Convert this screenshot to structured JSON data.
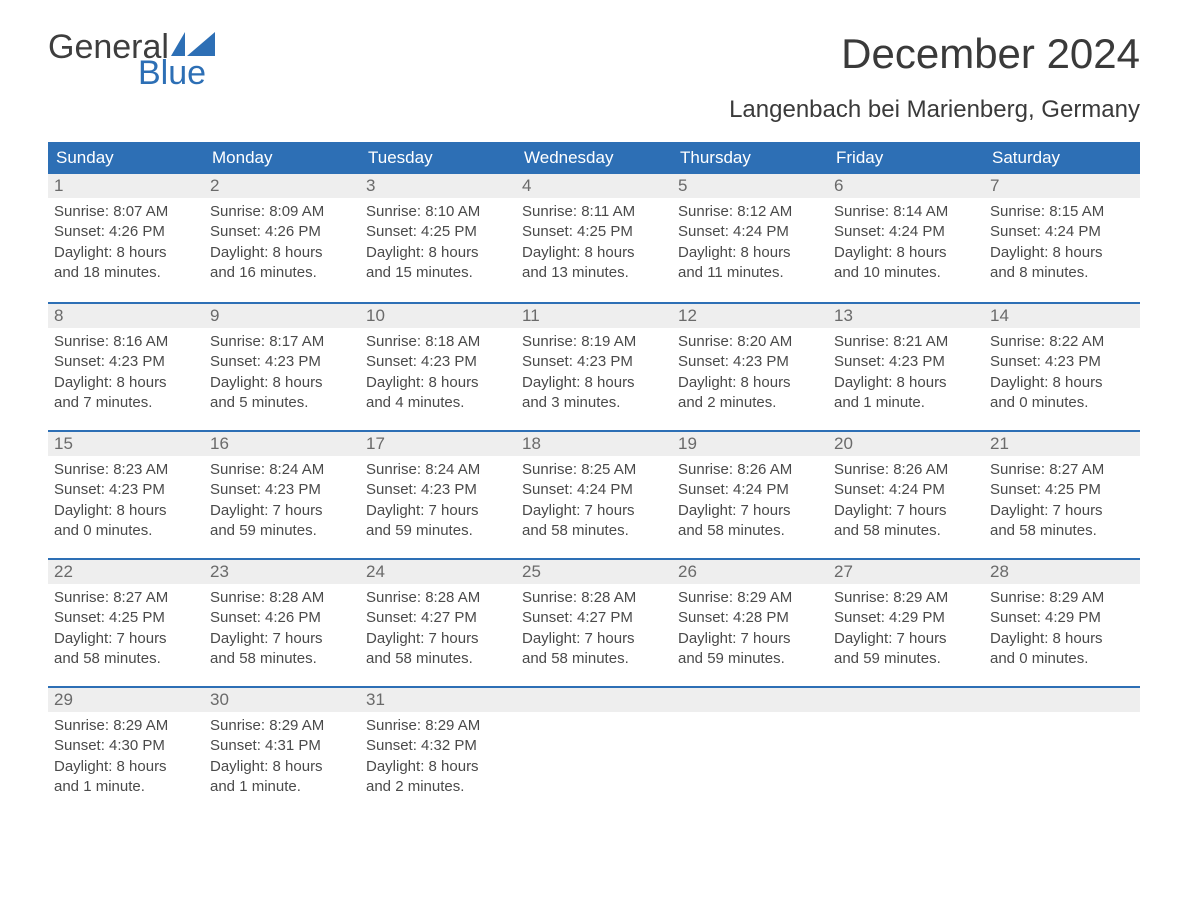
{
  "logo": {
    "part1": "General",
    "part2": "Blue",
    "icon_color": "#2d6fb5"
  },
  "title": "December 2024",
  "location": "Langenbach bei Marienberg, Germany",
  "colors": {
    "header_bg": "#2d6fb5",
    "header_text": "#ffffff",
    "daynum_bg": "#eeeeee",
    "daynum_text": "#6a6a6a",
    "body_text": "#4a4a4a",
    "week_border": "#2d6fb5",
    "page_bg": "#ffffff"
  },
  "typography": {
    "title_fontsize": 42,
    "location_fontsize": 24,
    "header_fontsize": 17,
    "daynum_fontsize": 17,
    "cell_fontsize": 15
  },
  "day_headers": [
    "Sunday",
    "Monday",
    "Tuesday",
    "Wednesday",
    "Thursday",
    "Friday",
    "Saturday"
  ],
  "weeks": [
    [
      {
        "n": "1",
        "sunrise": "Sunrise: 8:07 AM",
        "sunset": "Sunset: 4:26 PM",
        "d1": "Daylight: 8 hours",
        "d2": "and 18 minutes."
      },
      {
        "n": "2",
        "sunrise": "Sunrise: 8:09 AM",
        "sunset": "Sunset: 4:26 PM",
        "d1": "Daylight: 8 hours",
        "d2": "and 16 minutes."
      },
      {
        "n": "3",
        "sunrise": "Sunrise: 8:10 AM",
        "sunset": "Sunset: 4:25 PM",
        "d1": "Daylight: 8 hours",
        "d2": "and 15 minutes."
      },
      {
        "n": "4",
        "sunrise": "Sunrise: 8:11 AM",
        "sunset": "Sunset: 4:25 PM",
        "d1": "Daylight: 8 hours",
        "d2": "and 13 minutes."
      },
      {
        "n": "5",
        "sunrise": "Sunrise: 8:12 AM",
        "sunset": "Sunset: 4:24 PM",
        "d1": "Daylight: 8 hours",
        "d2": "and 11 minutes."
      },
      {
        "n": "6",
        "sunrise": "Sunrise: 8:14 AM",
        "sunset": "Sunset: 4:24 PM",
        "d1": "Daylight: 8 hours",
        "d2": "and 10 minutes."
      },
      {
        "n": "7",
        "sunrise": "Sunrise: 8:15 AM",
        "sunset": "Sunset: 4:24 PM",
        "d1": "Daylight: 8 hours",
        "d2": "and 8 minutes."
      }
    ],
    [
      {
        "n": "8",
        "sunrise": "Sunrise: 8:16 AM",
        "sunset": "Sunset: 4:23 PM",
        "d1": "Daylight: 8 hours",
        "d2": "and 7 minutes."
      },
      {
        "n": "9",
        "sunrise": "Sunrise: 8:17 AM",
        "sunset": "Sunset: 4:23 PM",
        "d1": "Daylight: 8 hours",
        "d2": "and 5 minutes."
      },
      {
        "n": "10",
        "sunrise": "Sunrise: 8:18 AM",
        "sunset": "Sunset: 4:23 PM",
        "d1": "Daylight: 8 hours",
        "d2": "and 4 minutes."
      },
      {
        "n": "11",
        "sunrise": "Sunrise: 8:19 AM",
        "sunset": "Sunset: 4:23 PM",
        "d1": "Daylight: 8 hours",
        "d2": "and 3 minutes."
      },
      {
        "n": "12",
        "sunrise": "Sunrise: 8:20 AM",
        "sunset": "Sunset: 4:23 PM",
        "d1": "Daylight: 8 hours",
        "d2": "and 2 minutes."
      },
      {
        "n": "13",
        "sunrise": "Sunrise: 8:21 AM",
        "sunset": "Sunset: 4:23 PM",
        "d1": "Daylight: 8 hours",
        "d2": "and 1 minute."
      },
      {
        "n": "14",
        "sunrise": "Sunrise: 8:22 AM",
        "sunset": "Sunset: 4:23 PM",
        "d1": "Daylight: 8 hours",
        "d2": "and 0 minutes."
      }
    ],
    [
      {
        "n": "15",
        "sunrise": "Sunrise: 8:23 AM",
        "sunset": "Sunset: 4:23 PM",
        "d1": "Daylight: 8 hours",
        "d2": "and 0 minutes."
      },
      {
        "n": "16",
        "sunrise": "Sunrise: 8:24 AM",
        "sunset": "Sunset: 4:23 PM",
        "d1": "Daylight: 7 hours",
        "d2": "and 59 minutes."
      },
      {
        "n": "17",
        "sunrise": "Sunrise: 8:24 AM",
        "sunset": "Sunset: 4:23 PM",
        "d1": "Daylight: 7 hours",
        "d2": "and 59 minutes."
      },
      {
        "n": "18",
        "sunrise": "Sunrise: 8:25 AM",
        "sunset": "Sunset: 4:24 PM",
        "d1": "Daylight: 7 hours",
        "d2": "and 58 minutes."
      },
      {
        "n": "19",
        "sunrise": "Sunrise: 8:26 AM",
        "sunset": "Sunset: 4:24 PM",
        "d1": "Daylight: 7 hours",
        "d2": "and 58 minutes."
      },
      {
        "n": "20",
        "sunrise": "Sunrise: 8:26 AM",
        "sunset": "Sunset: 4:24 PM",
        "d1": "Daylight: 7 hours",
        "d2": "and 58 minutes."
      },
      {
        "n": "21",
        "sunrise": "Sunrise: 8:27 AM",
        "sunset": "Sunset: 4:25 PM",
        "d1": "Daylight: 7 hours",
        "d2": "and 58 minutes."
      }
    ],
    [
      {
        "n": "22",
        "sunrise": "Sunrise: 8:27 AM",
        "sunset": "Sunset: 4:25 PM",
        "d1": "Daylight: 7 hours",
        "d2": "and 58 minutes."
      },
      {
        "n": "23",
        "sunrise": "Sunrise: 8:28 AM",
        "sunset": "Sunset: 4:26 PM",
        "d1": "Daylight: 7 hours",
        "d2": "and 58 minutes."
      },
      {
        "n": "24",
        "sunrise": "Sunrise: 8:28 AM",
        "sunset": "Sunset: 4:27 PM",
        "d1": "Daylight: 7 hours",
        "d2": "and 58 minutes."
      },
      {
        "n": "25",
        "sunrise": "Sunrise: 8:28 AM",
        "sunset": "Sunset: 4:27 PM",
        "d1": "Daylight: 7 hours",
        "d2": "and 58 minutes."
      },
      {
        "n": "26",
        "sunrise": "Sunrise: 8:29 AM",
        "sunset": "Sunset: 4:28 PM",
        "d1": "Daylight: 7 hours",
        "d2": "and 59 minutes."
      },
      {
        "n": "27",
        "sunrise": "Sunrise: 8:29 AM",
        "sunset": "Sunset: 4:29 PM",
        "d1": "Daylight: 7 hours",
        "d2": "and 59 minutes."
      },
      {
        "n": "28",
        "sunrise": "Sunrise: 8:29 AM",
        "sunset": "Sunset: 4:29 PM",
        "d1": "Daylight: 8 hours",
        "d2": "and 0 minutes."
      }
    ],
    [
      {
        "n": "29",
        "sunrise": "Sunrise: 8:29 AM",
        "sunset": "Sunset: 4:30 PM",
        "d1": "Daylight: 8 hours",
        "d2": "and 1 minute."
      },
      {
        "n": "30",
        "sunrise": "Sunrise: 8:29 AM",
        "sunset": "Sunset: 4:31 PM",
        "d1": "Daylight: 8 hours",
        "d2": "and 1 minute."
      },
      {
        "n": "31",
        "sunrise": "Sunrise: 8:29 AM",
        "sunset": "Sunset: 4:32 PM",
        "d1": "Daylight: 8 hours",
        "d2": "and 2 minutes."
      },
      {
        "empty": true
      },
      {
        "empty": true
      },
      {
        "empty": true
      },
      {
        "empty": true
      }
    ]
  ]
}
